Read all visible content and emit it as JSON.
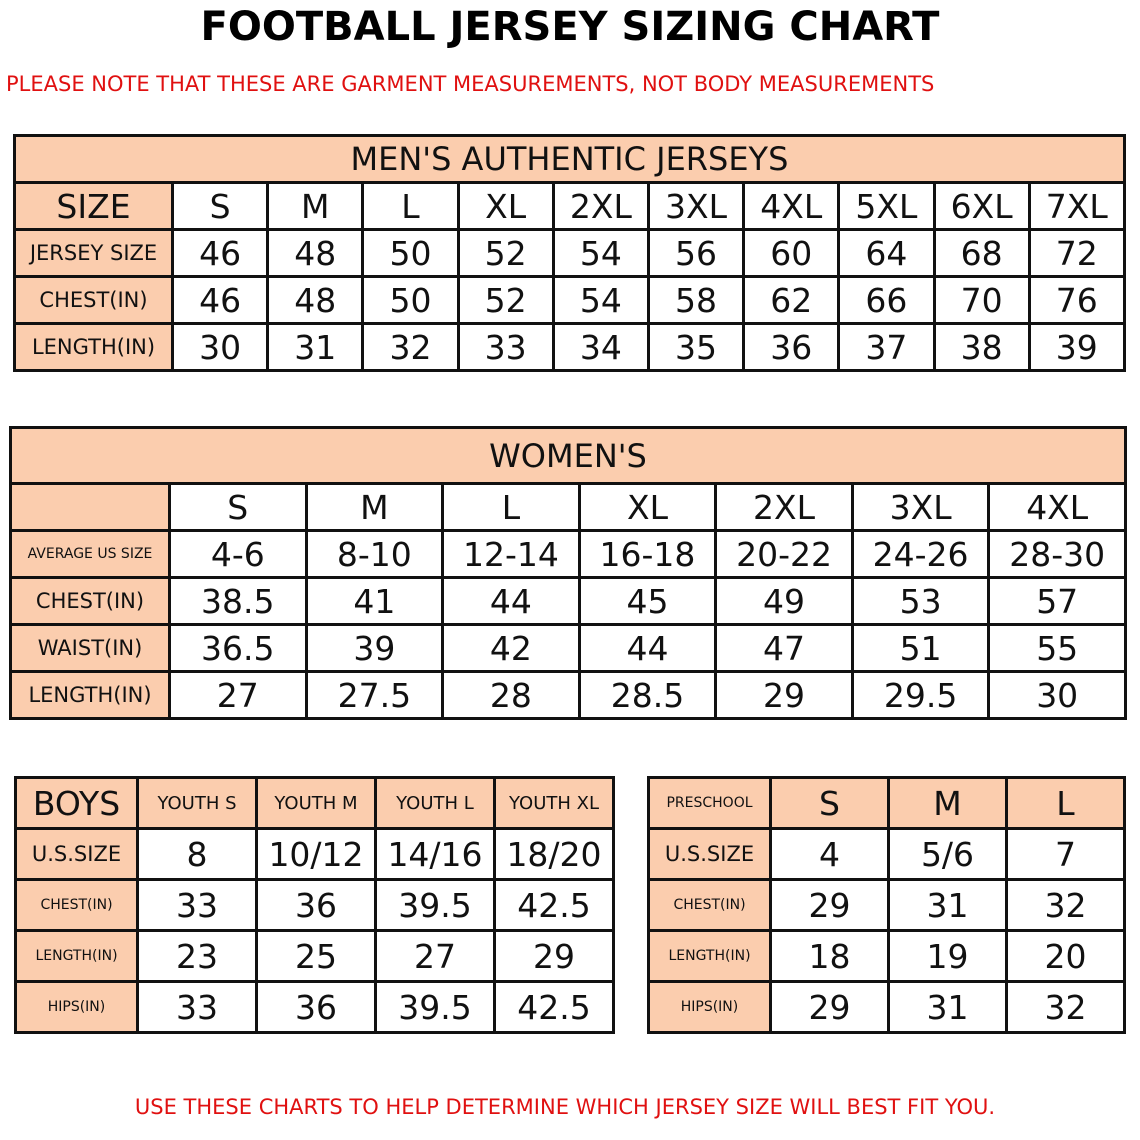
{
  "title": "FOOTBALL JERSEY SIZING CHART",
  "note_top": "PLEASE NOTE THAT THESE ARE GARMENT MEASUREMENTS, NOT BODY MEASUREMENTS",
  "note_bottom": "USE THESE CHARTS TO HELP DETERMINE WHICH JERSEY SIZE WILL BEST FIT YOU.",
  "colors": {
    "header_fill": "#fbcdae",
    "note_text": "#e01010"
  },
  "mens": {
    "title": "MEN'S AUTHENTIC JERSEYS",
    "rows": [
      [
        "SIZE",
        "S",
        "M",
        "L",
        "XL",
        "2XL",
        "3XL",
        "4XL",
        "5XL",
        "6XL",
        "7XL"
      ],
      [
        "JERSEY SIZE",
        "46",
        "48",
        "50",
        "52",
        "54",
        "56",
        "60",
        "64",
        "68",
        "72"
      ],
      [
        "CHEST(IN)",
        "46",
        "48",
        "50",
        "52",
        "54",
        "58",
        "62",
        "66",
        "70",
        "76"
      ],
      [
        "LENGTH(IN)",
        "30",
        "31",
        "32",
        "33",
        "34",
        "35",
        "36",
        "37",
        "38",
        "39"
      ]
    ]
  },
  "womens": {
    "title": "WOMEN'S",
    "rows": [
      [
        "",
        "S",
        "M",
        "L",
        "XL",
        "2XL",
        "3XL",
        "4XL"
      ],
      [
        "AVERAGE US SIZE",
        "4-6",
        "8-10",
        "12-14",
        "16-18",
        "20-22",
        "24-26",
        "28-30"
      ],
      [
        "CHEST(IN)",
        "38.5",
        "41",
        "44",
        "45",
        "49",
        "53",
        "57"
      ],
      [
        "WAIST(IN)",
        "36.5",
        "39",
        "42",
        "44",
        "47",
        "51",
        "55"
      ],
      [
        "LENGTH(IN)",
        "27",
        "27.5",
        "28",
        "28.5",
        "29",
        "29.5",
        "30"
      ]
    ]
  },
  "boys": {
    "rows": [
      [
        "BOYS",
        "YOUTH S",
        "YOUTH M",
        "YOUTH L",
        "YOUTH XL"
      ],
      [
        "U.S.SIZE",
        "8",
        "10/12",
        "14/16",
        "18/20"
      ],
      [
        "CHEST(IN)",
        "33",
        "36",
        "39.5",
        "42.5"
      ],
      [
        "LENGTH(IN)",
        "23",
        "25",
        "27",
        "29"
      ],
      [
        "HIPS(IN)",
        "33",
        "36",
        "39.5",
        "42.5"
      ]
    ]
  },
  "preschool": {
    "rows": [
      [
        "PRESCHOOL",
        "S",
        "M",
        "L"
      ],
      [
        "U.S.SIZE",
        "4",
        "5/6",
        "7"
      ],
      [
        "CHEST(IN)",
        "29",
        "31",
        "32"
      ],
      [
        "LENGTH(IN)",
        "18",
        "19",
        "20"
      ],
      [
        "HIPS(IN)",
        "29",
        "31",
        "32"
      ]
    ]
  }
}
